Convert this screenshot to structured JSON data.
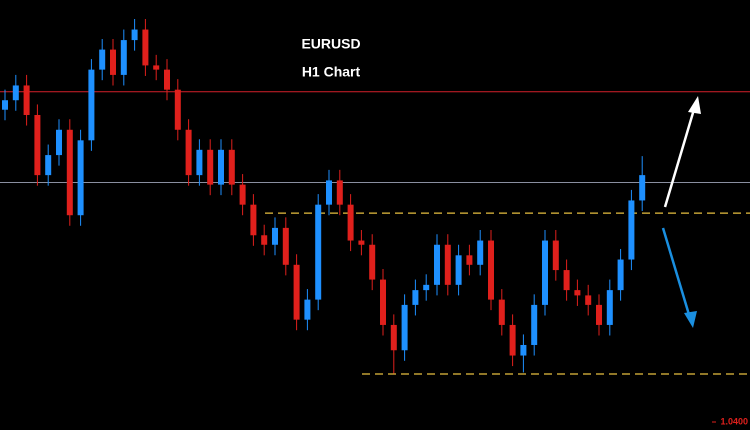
{
  "chart_data": {
    "type": "candlestick",
    "title": "EURUSD",
    "subtitle": "H1 Chart",
    "ylim": [
      1.04,
      1.08
    ],
    "yticks": [
      {
        "value": 1.04,
        "label": "1.0400"
      }
    ],
    "up_color": "#1e90ff",
    "down_color": "#e0201c",
    "open": [
      1.0696,
      1.0705,
      1.0719,
      1.0691,
      1.0634,
      1.0653,
      1.0677,
      1.0596,
      1.0667,
      1.0734,
      1.0753,
      1.0729,
      1.0762,
      1.0772,
      1.0738,
      1.0734,
      1.0715,
      1.0677,
      1.0634,
      1.0658,
      1.0625,
      1.0658,
      1.0625,
      1.0606,
      1.0577,
      1.0568,
      1.0584,
      1.0549,
      1.0497,
      1.0516,
      1.0606,
      1.0629,
      1.0606,
      1.0572,
      1.0568,
      1.0535,
      1.0492,
      1.0468,
      1.0511,
      1.0525,
      1.053,
      1.0568,
      1.053,
      1.0558,
      1.0549,
      1.0572,
      1.0516,
      1.0492,
      1.0463,
      1.0473,
      1.0511,
      1.0572,
      1.0544,
      1.0525,
      1.052,
      1.0511,
      1.0492,
      1.0525,
      1.0554,
      1.061
    ],
    "high": [
      1.0715,
      1.0729,
      1.0729,
      1.0701,
      1.0663,
      1.0687,
      1.0687,
      1.0677,
      1.0744,
      1.0763,
      1.0763,
      1.0772,
      1.0782,
      1.0782,
      1.0748,
      1.0744,
      1.0725,
      1.0687,
      1.0668,
      1.0668,
      1.0668,
      1.0668,
      1.0635,
      1.0616,
      1.0587,
      1.0594,
      1.0594,
      1.0559,
      1.0526,
      1.0616,
      1.0639,
      1.0639,
      1.0616,
      1.0582,
      1.0578,
      1.0545,
      1.0502,
      1.0521,
      1.0535,
      1.054,
      1.0578,
      1.0578,
      1.0568,
      1.0568,
      1.0582,
      1.0582,
      1.0526,
      1.0502,
      1.0483,
      1.0521,
      1.0582,
      1.0582,
      1.0554,
      1.0535,
      1.053,
      1.0521,
      1.0535,
      1.0564,
      1.062,
      1.0652
    ],
    "low": [
      1.0686,
      1.0695,
      1.0681,
      1.0624,
      1.0624,
      1.0643,
      1.0586,
      1.0586,
      1.0657,
      1.0724,
      1.0719,
      1.0719,
      1.0752,
      1.0728,
      1.0724,
      1.0705,
      1.0667,
      1.0624,
      1.0624,
      1.0615,
      1.0615,
      1.0615,
      1.0596,
      1.0567,
      1.0558,
      1.0558,
      1.0539,
      1.0487,
      1.0487,
      1.0506,
      1.0596,
      1.0596,
      1.0562,
      1.0558,
      1.0525,
      1.0482,
      1.0446,
      1.0458,
      1.0501,
      1.0515,
      1.052,
      1.052,
      1.052,
      1.0539,
      1.0539,
      1.0506,
      1.0482,
      1.0453,
      1.0447,
      1.0463,
      1.0501,
      1.0534,
      1.0515,
      1.051,
      1.0501,
      1.0482,
      1.0482,
      1.0515,
      1.0544,
      1.06
    ],
    "close": [
      1.0705,
      1.0719,
      1.0691,
      1.0634,
      1.0653,
      1.0677,
      1.0596,
      1.0667,
      1.0734,
      1.0753,
      1.0729,
      1.0762,
      1.0772,
      1.0738,
      1.0734,
      1.0715,
      1.0677,
      1.0634,
      1.0658,
      1.0625,
      1.0658,
      1.0625,
      1.0606,
      1.0577,
      1.0568,
      1.0584,
      1.0549,
      1.0497,
      1.0516,
      1.0606,
      1.0629,
      1.0606,
      1.0572,
      1.0568,
      1.0535,
      1.0492,
      1.0468,
      1.0511,
      1.0525,
      1.053,
      1.0568,
      1.053,
      1.0558,
      1.0549,
      1.0572,
      1.0516,
      1.0492,
      1.0463,
      1.0473,
      1.0511,
      1.0572,
      1.0544,
      1.0525,
      1.052,
      1.0511,
      1.0492,
      1.0525,
      1.0554,
      1.061,
      1.0634
    ],
    "levels": [
      {
        "value": 1.0713,
        "color": "#d4202a",
        "style": "solid"
      },
      {
        "value": 1.0627,
        "color": "#8a8fa0",
        "style": "solid"
      },
      {
        "value": 1.0598,
        "color": "#e8c040",
        "style": "dashed"
      },
      {
        "value": 1.04455,
        "color": "#e8c040",
        "style": "dashed"
      }
    ]
  }
}
